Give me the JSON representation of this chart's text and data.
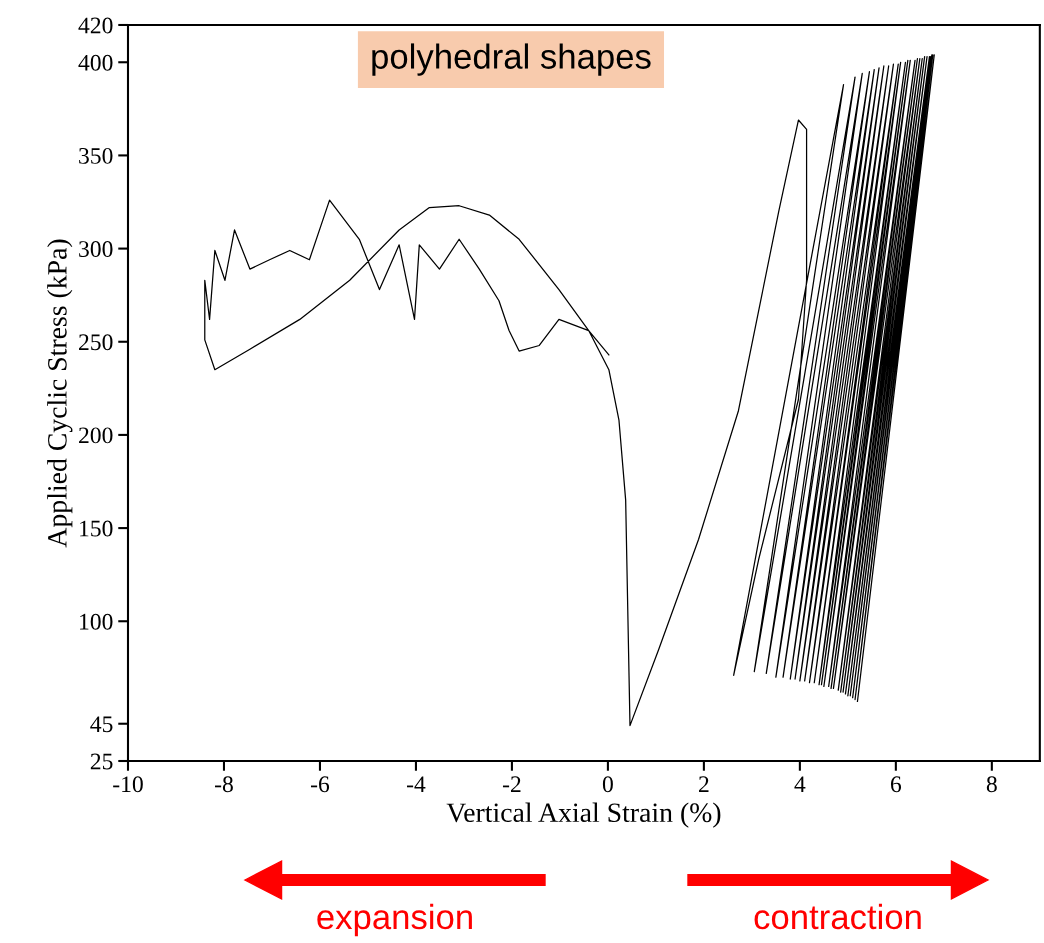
{
  "chart_data": {
    "type": "line",
    "xlabel": "Vertical Axial Strain (%)",
    "ylabel": "Applied Cyclic Stress (kPa)",
    "annotations": [
      "polyhedral shapes",
      "expansion",
      "contraction"
    ],
    "xlim": [
      -10,
      9
    ],
    "xticks": [
      -10,
      -8,
      -6,
      -4,
      -2,
      0,
      2,
      4,
      6,
      8
    ],
    "ylim": [
      25,
      420
    ],
    "yticks": [
      25,
      45,
      100,
      150,
      200,
      250,
      300,
      350,
      400,
      420
    ],
    "grid": false,
    "marker": "none",
    "line_style": "solid",
    "series": [
      {
        "color": "#000000",
        "x": [
          0.02,
          -0.4,
          -1.02,
          -1.43,
          -1.85,
          -2.06,
          -2.27,
          -2.68,
          -3.1,
          -3.51,
          -3.93,
          -4.03,
          -4.35,
          -4.76,
          -5.18,
          -5.8,
          -6.22,
          -6.63,
          -7.05,
          -7.46,
          -7.78,
          -7.98,
          -8.19,
          -8.3,
          -8.4,
          -8.4,
          -8.19,
          -7.46,
          -6.42,
          -5.38,
          -4.35,
          -3.72,
          -3.1,
          -2.47,
          -1.85,
          -1.02,
          -0.4,
          0.02,
          0.23,
          0.37,
          0.46,
          1.06,
          1.89,
          2.72,
          3.56,
          3.97,
          4.14,
          4.14,
          3.97,
          3.14,
          2.62,
          4.91,
          3.05,
          5.15,
          3.3,
          5.3,
          3.5,
          5.45,
          3.65,
          5.55,
          3.8,
          5.65,
          3.9,
          5.75,
          4.0,
          5.85,
          4.1,
          5.95,
          4.2,
          6.05,
          4.3,
          6.1,
          4.4,
          6.2,
          4.45,
          6.25,
          4.5,
          6.3,
          4.6,
          6.4,
          4.65,
          6.45,
          4.7,
          6.5,
          4.8,
          6.55,
          4.85,
          6.6,
          4.9,
          6.65,
          4.95,
          6.7,
          5.0,
          6.72,
          5.05,
          6.75,
          5.1,
          6.77,
          5.15,
          6.8,
          5.2
        ],
        "values": [
          243,
          256,
          262,
          248,
          245,
          256,
          272,
          289,
          305,
          289,
          302,
          262,
          302,
          278,
          305,
          326,
          294,
          299,
          294,
          289,
          310,
          283,
          299,
          262,
          283,
          251,
          235,
          246,
          262,
          283,
          310,
          322,
          323,
          318,
          305,
          278,
          256,
          235,
          208,
          165,
          44,
          85,
          144,
          213,
          320,
          369,
          364,
          283,
          219,
          133,
          71,
          388,
          73,
          392,
          72,
          394,
          70,
          395,
          70,
          396,
          69,
          397,
          69,
          398,
          68,
          398,
          68,
          399,
          67,
          399,
          67,
          400,
          66,
          400,
          66,
          401,
          65,
          401,
          65,
          401,
          64,
          402,
          64,
          402,
          63,
          402,
          62,
          403,
          62,
          403,
          61,
          403,
          60,
          403,
          60,
          404,
          59,
          404,
          58,
          404,
          57
        ]
      }
    ]
  }
}
